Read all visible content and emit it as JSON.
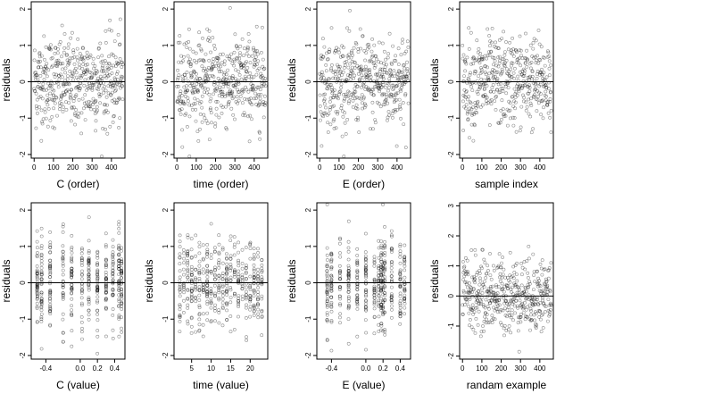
{
  "chart_data": [
    {
      "type": "scatter",
      "xlabel": "C (order)",
      "ylabel": "residuals",
      "xticks": [
        "0",
        "100",
        "200",
        "300",
        "400"
      ],
      "yticks": [
        "-2",
        "-1",
        "0",
        "1",
        "2"
      ],
      "xlim": [
        -15,
        470
      ],
      "ylim": [
        -2.1,
        2.2
      ],
      "ref_line_y": 0,
      "pattern": "order",
      "n_points": 460
    },
    {
      "type": "scatter",
      "xlabel": "time (order)",
      "ylabel": "residuals",
      "xticks": [
        "0",
        "100",
        "200",
        "300",
        "400"
      ],
      "yticks": [
        "-2",
        "-1",
        "0",
        "1",
        "2"
      ],
      "xlim": [
        -15,
        470
      ],
      "ylim": [
        -2.1,
        2.2
      ],
      "ref_line_y": 0,
      "pattern": "order",
      "n_points": 460
    },
    {
      "type": "scatter",
      "xlabel": "E (order)",
      "ylabel": "residuals",
      "xticks": [
        "0",
        "100",
        "200",
        "300",
        "400"
      ],
      "yticks": [
        "-2",
        "-1",
        "0",
        "1",
        "2"
      ],
      "xlim": [
        -15,
        470
      ],
      "ylim": [
        -2.1,
        2.2
      ],
      "ref_line_y": 0,
      "pattern": "order",
      "n_points": 460
    },
    {
      "type": "scatter",
      "xlabel": "sample index",
      "ylabel": "residuals",
      "xticks": [
        "0",
        "100",
        "200",
        "300",
        "400"
      ],
      "yticks": [
        "-2",
        "-1",
        "0",
        "1",
        "2"
      ],
      "xlim": [
        -15,
        470
      ],
      "ylim": [
        -2.1,
        2.2
      ],
      "ref_line_y": 0,
      "pattern": "order",
      "n_points": 460
    },
    {
      "type": "scatter",
      "xlabel": "C (value)",
      "ylabel": "residuals",
      "xticks": [
        "-0.4",
        "0.0",
        "0.2",
        "0.4"
      ],
      "yticks": [
        "-2",
        "-1",
        "0",
        "1",
        "2"
      ],
      "xlim": [
        -0.57,
        0.52
      ],
      "ylim": [
        -2.1,
        2.2
      ],
      "ref_line_y": 0,
      "pattern": "clustered",
      "x_clusters": [
        -0.5,
        -0.45,
        -0.35,
        -0.2,
        -0.1,
        0.02,
        0.1,
        0.2,
        0.3,
        0.38,
        0.45,
        0.48
      ],
      "n_points": 460
    },
    {
      "type": "scatter",
      "xlabel": "time (value)",
      "ylabel": "residuals",
      "xticks": [
        "5",
        "10",
        "15",
        "20"
      ],
      "yticks": [
        "-2",
        "-1",
        "0",
        "1",
        "2"
      ],
      "xlim": [
        0.5,
        24.5
      ],
      "ylim": [
        -2.1,
        2.2
      ],
      "ref_line_y": 0,
      "pattern": "clustered",
      "x_clusters": [
        2,
        3,
        4,
        5,
        6,
        7,
        8,
        9,
        10,
        11,
        12,
        13,
        14,
        15,
        16,
        17,
        18,
        19,
        20,
        21,
        22,
        23
      ],
      "n_points": 460
    },
    {
      "type": "scatter",
      "xlabel": "E (value)",
      "ylabel": "residuals",
      "xticks": [
        "-0.4",
        "0.0",
        "0.2",
        "0.4"
      ],
      "yticks": [
        "-2",
        "-1",
        "0",
        "1",
        "2"
      ],
      "xlim": [
        -0.57,
        0.52
      ],
      "ylim": [
        -2.1,
        2.2
      ],
      "ref_line_y": 0,
      "pattern": "clustered",
      "x_clusters": [
        -0.45,
        -0.4,
        -0.3,
        -0.2,
        -0.1,
        0.0,
        0.1,
        0.15,
        0.18,
        0.2,
        0.22,
        0.3,
        0.4,
        0.45
      ],
      "n_points": 460
    },
    {
      "type": "scatter",
      "xlabel": "randam example",
      "ylabel": "residuals",
      "xticks": [
        "0",
        "100",
        "200",
        "300",
        "400"
      ],
      "yticks": [
        "-2",
        "-1",
        "0",
        "1",
        "2",
        "3"
      ],
      "xlim": [
        -15,
        470
      ],
      "ylim": [
        -2.1,
        3.1
      ],
      "ref_line_y": 0,
      "pattern": "order",
      "n_points": 460
    }
  ]
}
